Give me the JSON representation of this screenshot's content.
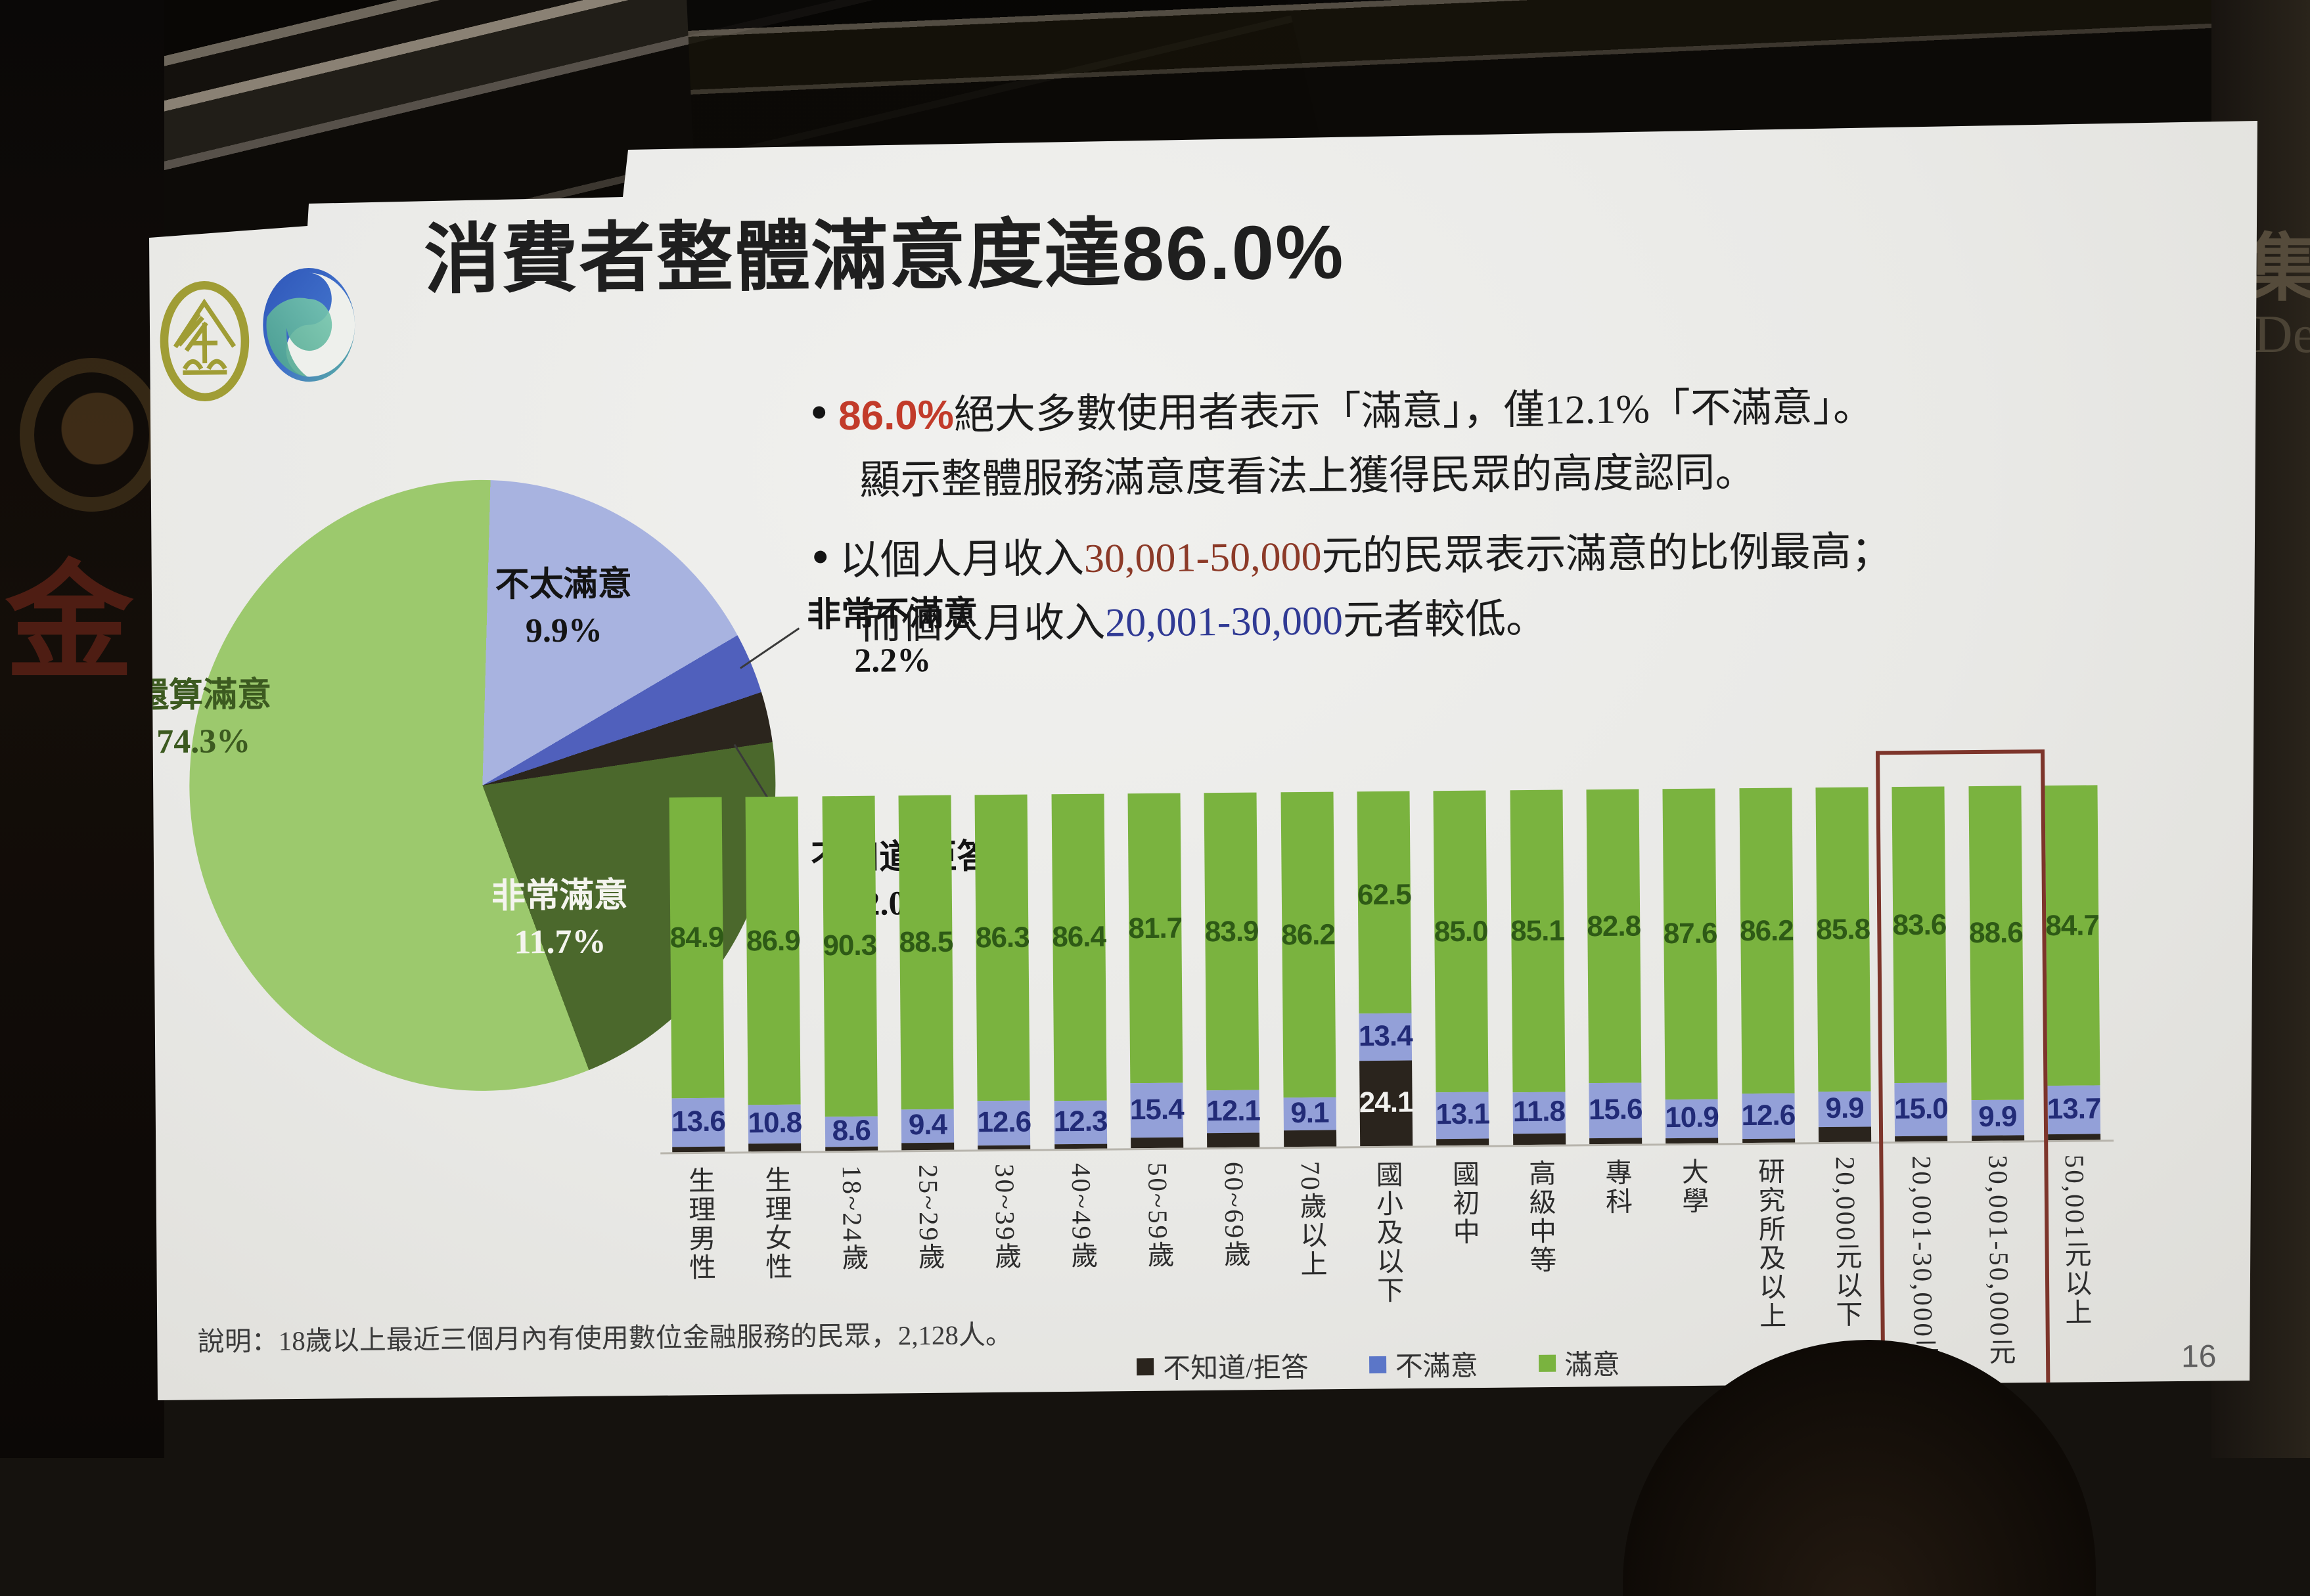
{
  "slide": {
    "title": "消費者整體滿意度達86.0%",
    "page_number": "16",
    "note": "說明：18歲以上最近三個月內有使用數位金融服務的民眾，2,128人。",
    "bullet_char": "●",
    "bullet1": {
      "highlight": "86.0%",
      "line1_rest": "絕大多數使用者表示「滿意」，僅12.1%「不滿意」。",
      "line2": "顯示整體服務滿意度看法上獲得民眾的高度認同。"
    },
    "bullet2": {
      "prefix": "以個人月收入",
      "income_high": "30,001-50,000",
      "line1_rest": "元的民眾表示滿意的比例最高；",
      "line2_prefix": "而個人月收入",
      "income_low": "20,001-30,000",
      "line2_rest": "元者較低。"
    }
  },
  "photo": {
    "right_wall_cjk": "集",
    "right_wall_latin": "De",
    "left_banner_char": "金"
  },
  "colors": {
    "accent_red": "#c23b2a",
    "income_red": "#8c3a28",
    "income_blue": "#303a94",
    "highlight_box": "#7d352b",
    "satisfied_green": "#7ab33f",
    "dissatisfied_blue": "#93a0d8",
    "dontknow_black": "#2a241d"
  },
  "chart_data": [
    {
      "type": "pie",
      "start_angle_deg": 2,
      "render_sweep_deg": [
        58,
        12,
        10,
        78,
        202
      ],
      "segments": [
        {
          "label": "不太滿意",
          "value": 9.9,
          "value_label": "9.9%",
          "color": "#a8b3e0"
        },
        {
          "label": "非常不滿意",
          "value": 2.2,
          "value_label": "2.2%",
          "color": "#5060bc"
        },
        {
          "label": "不知道/拒答",
          "value": 2.0,
          "value_label": "2.0%",
          "color": "#2b251d"
        },
        {
          "label": "非常滿意",
          "value": 11.7,
          "value_label": "11.7%",
          "color": "#4b682c"
        },
        {
          "label": "還算滿意",
          "value": 74.3,
          "value_label": "74.3%",
          "color": "#9cc96d"
        }
      ]
    },
    {
      "type": "bar",
      "stacked": true,
      "ylim": [
        0,
        100
      ],
      "categories": [
        "生理男性",
        "生理女性",
        "18~24歲",
        "25~29歲",
        "30~39歲",
        "40~49歲",
        "50~59歲",
        "60~69歲",
        "70歲以上",
        "國小及以下",
        "國初中",
        "高級中等",
        "專科",
        "大學",
        "研究所及以上",
        "20,000元以下",
        "20,001-30,000元",
        "30,001-50,000元",
        "50,001元以上"
      ],
      "series": [
        {
          "name": "滿意",
          "color": "#7ab33f",
          "label_color": "#2e5a16",
          "values": [
            84.9,
            86.9,
            90.3,
            88.5,
            86.3,
            86.4,
            81.7,
            83.9,
            86.2,
            62.5,
            85.0,
            85.1,
            82.8,
            87.6,
            86.2,
            85.8,
            83.6,
            88.6,
            84.7
          ],
          "labels": [
            "84.9",
            "86.9",
            "90.3",
            "88.5",
            "86.3",
            "86.4",
            "81.7",
            "83.9",
            "86.2",
            "62.5",
            "85.0",
            "85.1",
            "82.8",
            "87.6",
            "86.2",
            "85.8",
            "83.6",
            "88.6",
            "84.7"
          ]
        },
        {
          "name": "不滿意",
          "color": "#93a0d8",
          "label_color": "#222b77",
          "values": [
            13.6,
            10.8,
            8.6,
            9.4,
            12.6,
            12.3,
            15.4,
            12.1,
            9.1,
            13.4,
            13.1,
            11.8,
            15.6,
            10.9,
            12.6,
            9.9,
            15.0,
            9.9,
            13.7
          ],
          "labels": [
            "13.6",
            "10.8",
            "8.6",
            "9.4",
            "12.6",
            "12.3",
            "15.4",
            "12.1",
            "9.1",
            "13.4",
            "13.1",
            "11.8",
            "15.6",
            "10.9",
            "12.6",
            "9.9",
            "15.0",
            "9.9",
            "13.7"
          ]
        },
        {
          "name": "不知道/拒答",
          "color": "#2a241d",
          "label_color": "#f2f2ef",
          "values": [
            1.5,
            2.3,
            1.1,
            2.1,
            1.1,
            1.3,
            2.9,
            4.0,
            4.7,
            24.1,
            1.9,
            3.1,
            1.6,
            1.5,
            1.2,
            4.3,
            1.4,
            1.5,
            1.6
          ],
          "labels": [
            null,
            null,
            null,
            null,
            null,
            null,
            null,
            null,
            null,
            "24.1",
            null,
            null,
            null,
            null,
            null,
            null,
            null,
            null,
            null
          ]
        }
      ],
      "legend_items": [
        {
          "label": "不知道/拒答",
          "color": "#2a241d"
        },
        {
          "label": "不滿意",
          "color": "#5b76c8"
        },
        {
          "label": "滿意",
          "color": "#7ab33f"
        }
      ],
      "highlight": {
        "from_index": 16,
        "to_index": 17,
        "color": "#7d352b"
      }
    }
  ]
}
